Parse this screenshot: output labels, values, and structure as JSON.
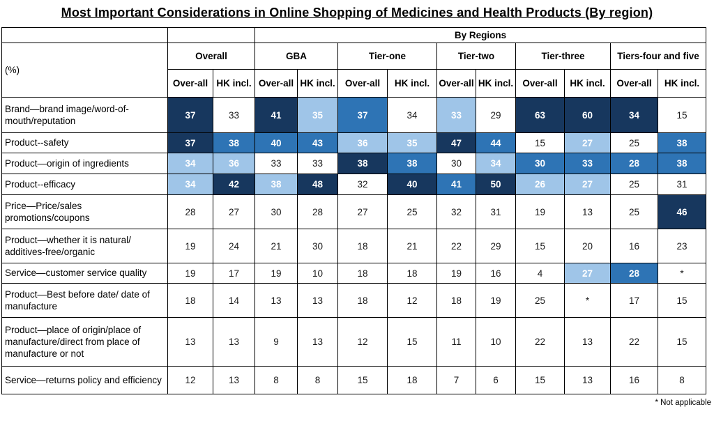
{
  "title": "Most Important Considerations in Online Shopping of Medicines and Health Products (By region)",
  "footnote": "* Not applicable",
  "colors": {
    "dark_blue": "#17375E",
    "medium_blue": "#2E74B5",
    "light_blue": "#9FC5E8",
    "border": "#000000"
  },
  "chart_data": {
    "type": "table",
    "title": "Most Important Considerations in Online Shopping of Medicines and Health Products (By region)",
    "unit_row_label": "(%)",
    "super_header": "By Regions",
    "column_groups": [
      "Overall",
      "GBA",
      "Tier-one",
      "Tier-two",
      "Tier-three",
      "Tiers-four and five"
    ],
    "groups_under_by_regions": [
      "GBA",
      "Tier-one",
      "Tier-two",
      "Tier-three",
      "Tiers-four and five"
    ],
    "sub_columns": [
      "Over-all",
      "HK incl."
    ],
    "shading_legend": "dark = highest emphasis, mid = medium, light = light highlight, none = plain white",
    "rows": [
      {
        "label": "Brand—brand image/word-of-mouth/reputation",
        "values": [
          "37",
          "33",
          "41",
          "35",
          "37",
          "34",
          "33",
          "29",
          "63",
          "60",
          "34",
          "15"
        ],
        "shading": [
          "dark",
          "none",
          "dark",
          "light",
          "mid",
          "none",
          "light",
          "none",
          "dark",
          "dark",
          "dark",
          "none"
        ]
      },
      {
        "label": "Product--safety",
        "values": [
          "37",
          "38",
          "40",
          "43",
          "36",
          "35",
          "47",
          "44",
          "15",
          "27",
          "25",
          "38"
        ],
        "shading": [
          "dark",
          "mid",
          "mid",
          "mid",
          "light",
          "light",
          "dark",
          "mid",
          "none",
          "light",
          "none",
          "mid"
        ]
      },
      {
        "label": "Product—origin of ingredients",
        "values": [
          "34",
          "36",
          "33",
          "33",
          "38",
          "38",
          "30",
          "34",
          "30",
          "33",
          "28",
          "38"
        ],
        "shading": [
          "light",
          "light",
          "none",
          "none",
          "dark",
          "mid",
          "none",
          "light",
          "mid",
          "mid",
          "mid",
          "mid"
        ]
      },
      {
        "label": "Product--efficacy",
        "values": [
          "34",
          "42",
          "38",
          "48",
          "32",
          "40",
          "41",
          "50",
          "26",
          "27",
          "25",
          "31"
        ],
        "shading": [
          "light",
          "dark",
          "light",
          "dark",
          "none",
          "dark",
          "mid",
          "dark",
          "light",
          "light",
          "none",
          "none"
        ]
      },
      {
        "label": "Price—Price/sales promotions/coupons",
        "values": [
          "28",
          "27",
          "30",
          "28",
          "27",
          "25",
          "32",
          "31",
          "19",
          "13",
          "25",
          "46"
        ],
        "shading": [
          "none",
          "none",
          "none",
          "none",
          "none",
          "none",
          "none",
          "none",
          "none",
          "none",
          "none",
          "dark"
        ]
      },
      {
        "label": "Product—whether it is natural/ additives-free/organic",
        "values": [
          "19",
          "24",
          "21",
          "30",
          "18",
          "21",
          "22",
          "29",
          "15",
          "20",
          "16",
          "23"
        ],
        "shading": [
          "none",
          "none",
          "none",
          "none",
          "none",
          "none",
          "none",
          "none",
          "none",
          "none",
          "none",
          "none"
        ]
      },
      {
        "label": "Service—customer service quality",
        "values": [
          "19",
          "17",
          "19",
          "10",
          "18",
          "18",
          "19",
          "16",
          "4",
          "27",
          "28",
          "*"
        ],
        "shading": [
          "none",
          "none",
          "none",
          "none",
          "none",
          "none",
          "none",
          "none",
          "none",
          "light",
          "mid",
          "none"
        ]
      },
      {
        "label": "Product—Best before date/ date of manufacture",
        "values": [
          "18",
          "14",
          "13",
          "13",
          "18",
          "12",
          "18",
          "19",
          "25",
          "*",
          "17",
          "15"
        ],
        "shading": [
          "none",
          "none",
          "none",
          "none",
          "none",
          "none",
          "none",
          "none",
          "none",
          "none",
          "none",
          "none"
        ]
      },
      {
        "label": "Product—place of origin/place of manufacture/direct from place of manufacture or not",
        "values": [
          "13",
          "13",
          "9",
          "13",
          "12",
          "15",
          "11",
          "10",
          "22",
          "13",
          "22",
          "15"
        ],
        "shading": [
          "none",
          "none",
          "none",
          "none",
          "none",
          "none",
          "none",
          "none",
          "none",
          "none",
          "none",
          "none"
        ]
      },
      {
        "label": "Service—returns policy and efficiency",
        "values": [
          "12",
          "13",
          "8",
          "8",
          "15",
          "18",
          "7",
          "6",
          "15",
          "13",
          "16",
          "8"
        ],
        "shading": [
          "none",
          "none",
          "none",
          "none",
          "none",
          "none",
          "none",
          "none",
          "none",
          "none",
          "none",
          "none"
        ]
      }
    ],
    "footnote": "* Not applicable"
  }
}
